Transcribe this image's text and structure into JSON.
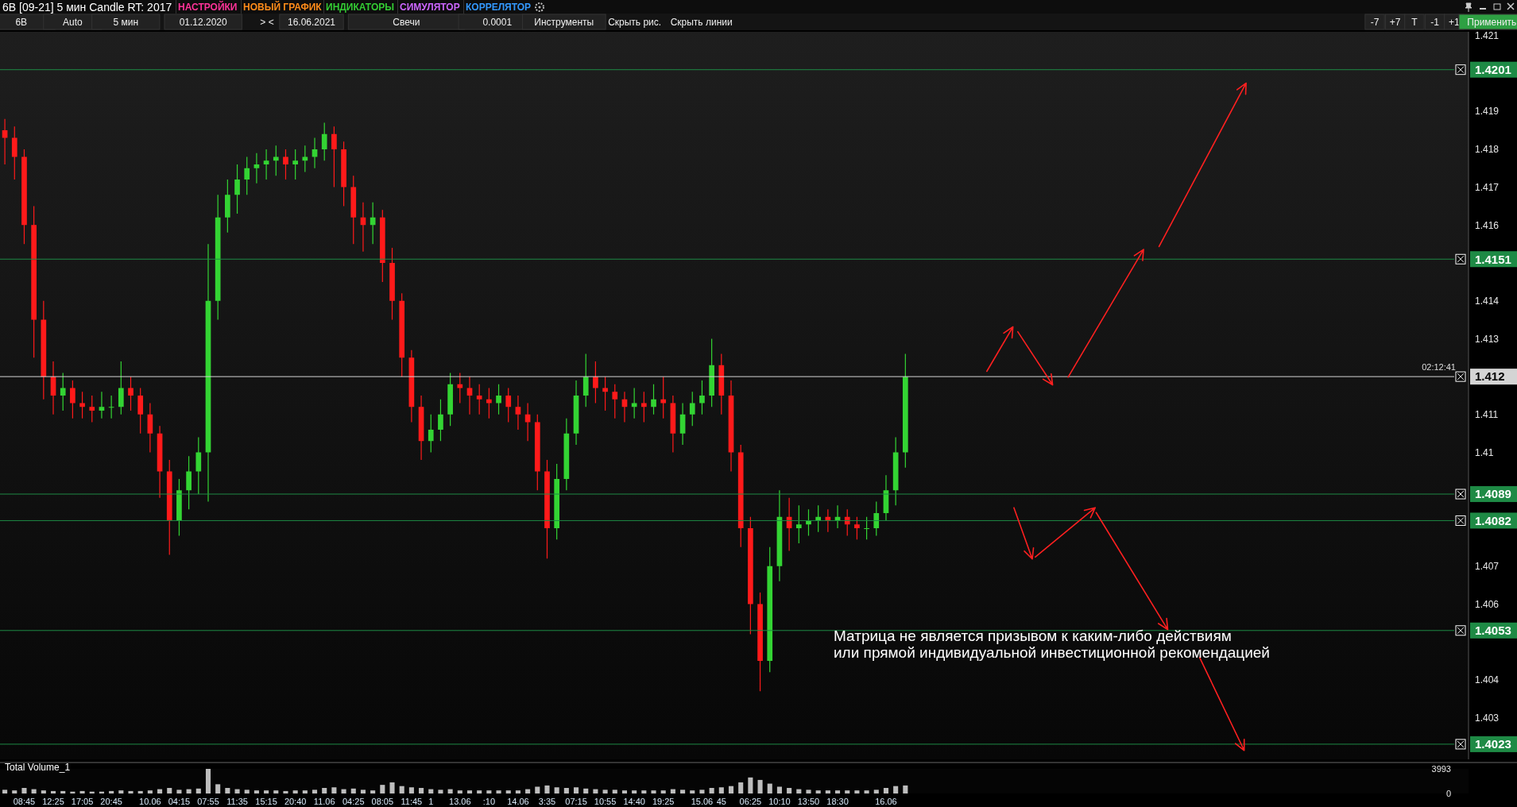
{
  "chart_data": [
    {
      "type": "candlestick",
      "title": "6B [09-21] 5 мин Candle RT: 2017",
      "tick_labels": "y",
      "categories": [
        null,
        null,
        null,
        null,
        null,
        null,
        null,
        null,
        null,
        null,
        null,
        null,
        null,
        null,
        null,
        null,
        null,
        null,
        null,
        null,
        null,
        null,
        null,
        null,
        null,
        null,
        null,
        null,
        null,
        null,
        null,
        null,
        null,
        null,
        null,
        null,
        null,
        null,
        null,
        null,
        null,
        null,
        null,
        null,
        null,
        null,
        null,
        null,
        null,
        null,
        null,
        null,
        null,
        null,
        null,
        null,
        null,
        null,
        null,
        null,
        null,
        null,
        null,
        null,
        null,
        null,
        null,
        null,
        null,
        null,
        null,
        null,
        null,
        null,
        null,
        null,
        null,
        null,
        null,
        null,
        null,
        null,
        null,
        null,
        null,
        null,
        null,
        null,
        null,
        null,
        null,
        null,
        null,
        null,
        null,
        null,
        null,
        null,
        null,
        null,
        null,
        null,
        null,
        null,
        null,
        null,
        null,
        null,
        null,
        null,
        null,
        null,
        null,
        null,
        null,
        null,
        null,
        null,
        null,
        null,
        null,
        null,
        null,
        null,
        null,
        null,
        null,
        null,
        null,
        null,
        null,
        null,
        null,
        null,
        null,
        null,
        null,
        null,
        null,
        null,
        null,
        null,
        null,
        null,
        null,
        null,
        null,
        null,
        null,
        null,
        null
      ],
      "ohlc": [
        [
          1.4185,
          1.4188,
          1.4176,
          1.4183
        ],
        [
          1.4183,
          1.4186,
          1.4172,
          1.4178
        ],
        [
          1.4178,
          1.418,
          1.4155,
          1.416
        ],
        [
          1.416,
          1.4165,
          1.4125,
          1.4135
        ],
        [
          1.4135,
          1.414,
          1.4114,
          1.412
        ],
        [
          1.412,
          1.4124,
          1.411,
          1.4115
        ],
        [
          1.4115,
          1.4121,
          1.4111,
          1.4117
        ],
        [
          1.4117,
          1.4119,
          1.4109,
          1.4113
        ],
        [
          1.4113,
          1.4116,
          1.4109,
          1.4112
        ],
        [
          1.4112,
          1.4115,
          1.4108,
          1.4111
        ],
        [
          1.4111,
          1.4116,
          1.4109,
          1.4112
        ],
        [
          1.4112,
          1.4115,
          1.4109,
          1.4112
        ],
        [
          1.4112,
          1.4124,
          1.411,
          1.4117
        ],
        [
          1.4117,
          1.412,
          1.4111,
          1.4115
        ],
        [
          1.4115,
          1.4117,
          1.4105,
          1.411
        ],
        [
          1.411,
          1.4113,
          1.41,
          1.4105
        ],
        [
          1.4105,
          1.4107,
          1.4088,
          1.4095
        ],
        [
          1.4095,
          1.4098,
          1.4073,
          1.4082
        ],
        [
          1.4082,
          1.4093,
          1.4078,
          1.409
        ],
        [
          1.409,
          1.4099,
          1.4085,
          1.4095
        ],
        [
          1.4095,
          1.4104,
          1.4089,
          1.41
        ],
        [
          1.41,
          1.4155,
          1.4087,
          1.414
        ],
        [
          1.414,
          1.4168,
          1.4135,
          1.4162
        ],
        [
          1.4162,
          1.4172,
          1.4158,
          1.4168
        ],
        [
          1.4168,
          1.4176,
          1.4163,
          1.4172
        ],
        [
          1.4172,
          1.4178,
          1.4168,
          1.4175
        ],
        [
          1.4175,
          1.4179,
          1.4171,
          1.4176
        ],
        [
          1.4176,
          1.418,
          1.4172,
          1.4177
        ],
        [
          1.4177,
          1.4181,
          1.4173,
          1.4178
        ],
        [
          1.4178,
          1.418,
          1.4172,
          1.4176
        ],
        [
          1.4176,
          1.418,
          1.4172,
          1.4177
        ],
        [
          1.4177,
          1.4181,
          1.4174,
          1.4178
        ],
        [
          1.4178,
          1.4183,
          1.4175,
          1.418
        ],
        [
          1.418,
          1.4187,
          1.4177,
          1.4184
        ],
        [
          1.4184,
          1.4186,
          1.417,
          1.418
        ],
        [
          1.418,
          1.4182,
          1.4165,
          1.417
        ],
        [
          1.417,
          1.4173,
          1.4155,
          1.4162
        ],
        [
          1.4162,
          1.4166,
          1.4153,
          1.416
        ],
        [
          1.416,
          1.4166,
          1.4155,
          1.4162
        ],
        [
          1.4162,
          1.4164,
          1.4145,
          1.415
        ],
        [
          1.415,
          1.4154,
          1.4135,
          1.414
        ],
        [
          1.414,
          1.4142,
          1.412,
          1.4125
        ],
        [
          1.4125,
          1.4127,
          1.4108,
          1.4112
        ],
        [
          1.4112,
          1.4115,
          1.4098,
          1.4103
        ],
        [
          1.4103,
          1.411,
          1.41,
          1.4106
        ],
        [
          1.4106,
          1.4114,
          1.4103,
          1.411
        ],
        [
          1.411,
          1.4121,
          1.4107,
          1.4118
        ],
        [
          1.4118,
          1.4121,
          1.4113,
          1.4117
        ],
        [
          1.4117,
          1.412,
          1.411,
          1.4115
        ],
        [
          1.4115,
          1.4118,
          1.411,
          1.4114
        ],
        [
          1.4114,
          1.4117,
          1.4109,
          1.4113
        ],
        [
          1.4113,
          1.4118,
          1.411,
          1.4115
        ],
        [
          1.4115,
          1.4117,
          1.4108,
          1.4112
        ],
        [
          1.4112,
          1.4115,
          1.4106,
          1.411
        ],
        [
          1.411,
          1.4113,
          1.4103,
          1.4108
        ],
        [
          1.4108,
          1.411,
          1.409,
          1.4095
        ],
        [
          1.4095,
          1.4098,
          1.4072,
          1.408
        ],
        [
          1.408,
          1.4097,
          1.4077,
          1.4093
        ],
        [
          1.4093,
          1.4109,
          1.409,
          1.4105
        ],
        [
          1.4105,
          1.4119,
          1.4102,
          1.4115
        ],
        [
          1.4115,
          1.4126,
          1.4112,
          1.412
        ],
        [
          1.412,
          1.4124,
          1.4113,
          1.4117
        ],
        [
          1.4117,
          1.412,
          1.4111,
          1.4116
        ],
        [
          1.4116,
          1.4118,
          1.4109,
          1.4114
        ],
        [
          1.4114,
          1.4116,
          1.4108,
          1.4112
        ],
        [
          1.4112,
          1.4117,
          1.4109,
          1.4113
        ],
        [
          1.4113,
          1.4116,
          1.4108,
          1.4112
        ],
        [
          1.4112,
          1.4118,
          1.411,
          1.4114
        ],
        [
          1.4114,
          1.412,
          1.4109,
          1.4113
        ],
        [
          1.4113,
          1.4115,
          1.41,
          1.4105
        ],
        [
          1.4105,
          1.4113,
          1.4102,
          1.411
        ],
        [
          1.411,
          1.4116,
          1.4107,
          1.4113
        ],
        [
          1.4113,
          1.4119,
          1.411,
          1.4115
        ],
        [
          1.4115,
          1.413,
          1.4112,
          1.4123
        ],
        [
          1.4123,
          1.4126,
          1.411,
          1.4115
        ],
        [
          1.4115,
          1.4119,
          1.4095,
          1.41
        ],
        [
          1.41,
          1.4102,
          1.4075,
          1.408
        ],
        [
          1.408,
          1.4083,
          1.4052,
          1.406
        ],
        [
          1.406,
          1.4063,
          1.4037,
          1.4045
        ],
        [
          1.4045,
          1.4075,
          1.4042,
          1.407
        ],
        [
          1.407,
          1.409,
          1.4066,
          1.4083
        ],
        [
          1.4083,
          1.4088,
          1.4074,
          1.408
        ],
        [
          1.408,
          1.4086,
          1.4076,
          1.4081
        ],
        [
          1.4081,
          1.4085,
          1.4078,
          1.4082
        ],
        [
          1.4082,
          1.4086,
          1.4079,
          1.4083
        ],
        [
          1.4083,
          1.4085,
          1.4079,
          1.4082
        ],
        [
          1.4082,
          1.4086,
          1.408,
          1.4083
        ],
        [
          1.4083,
          1.4085,
          1.4078,
          1.4081
        ],
        [
          1.4081,
          1.4083,
          1.4077,
          1.408
        ],
        [
          1.408,
          1.4083,
          1.4077,
          1.408
        ],
        [
          1.408,
          1.4087,
          1.4078,
          1.4084
        ],
        [
          1.4084,
          1.4094,
          1.4082,
          1.409
        ],
        [
          1.409,
          1.4104,
          1.4086,
          1.41
        ],
        [
          1.41,
          1.4126,
          1.4096,
          1.412
        ],
        null,
        null,
        null,
        null,
        null,
        null,
        null,
        null,
        null,
        null,
        null,
        null,
        null,
        null,
        null,
        null,
        null,
        null,
        null,
        null,
        null,
        null,
        null,
        null,
        null,
        null,
        null,
        null,
        null,
        null,
        null,
        null,
        null,
        null,
        null,
        null,
        null,
        null,
        null,
        null,
        null,
        null,
        null,
        null,
        null,
        null,
        null,
        null,
        null,
        null,
        null,
        null,
        null,
        null,
        null,
        null,
        null
      ],
      "ylim": [
        1.4019,
        1.4211
      ],
      "yticks": [
        1.421,
        1.419,
        1.418,
        1.417,
        1.416,
        1.414,
        1.413,
        1.411,
        1.41,
        1.407,
        1.406,
        1.404,
        1.403
      ],
      "ref_lines": [
        {
          "axis": "y",
          "value": 1.4201,
          "label": "1.4201",
          "color": "#1e8a45"
        },
        {
          "axis": "y",
          "value": 1.4151,
          "label": "1.4151",
          "color": "#1e8a45"
        },
        {
          "axis": "y",
          "value": 1.412,
          "label": "1.412",
          "color": "#d4d4d4"
        },
        {
          "axis": "y",
          "value": 1.4089,
          "label": "1.4089",
          "color": "#1e8a45"
        },
        {
          "axis": "y",
          "value": 1.4082,
          "label": "1.4082",
          "color": "#1e8a45"
        },
        {
          "axis": "y",
          "value": 1.4053,
          "label": "1.4053",
          "color": "#1e8a45"
        },
        {
          "axis": "y",
          "value": 1.4023,
          "label": "1.4023",
          "color": "#1e8a45"
        }
      ],
      "annotations": [
        "Матрица не является призывом к каким-либо действиям\nили прямой индивидуальной инвестиционной рекомендацией",
        "02:12:41",
        "НАСТРОЙКИ",
        "НОВЫЙ ГРАФИК",
        "ИНДИКАТОРЫ",
        "СИМУЛЯТОР",
        "КОРРЕЛЯТОР",
        "6B",
        "Auto",
        "5 мин",
        "01.12.2020",
        "> <",
        "16.06.2021",
        "Свечи",
        "0.0001",
        "Инструменты",
        "Скрыть рис.",
        "Скрыть линии",
        "-7",
        "+7",
        "T",
        "-1",
        "+1",
        "Применить"
      ]
    },
    {
      "type": "bar",
      "title": "Total Volume_1",
      "color": "#bdbdbd",
      "categories": [
        null,
        null,
        "08:45",
        null,
        null,
        "12:25",
        null,
        null,
        "17:05",
        null,
        null,
        "20:45",
        null,
        null,
        null,
        "10.06",
        null,
        null,
        "04:15",
        null,
        null,
        "07:55",
        null,
        null,
        "11:35",
        null,
        null,
        "15:15",
        null,
        null,
        "20:40",
        null,
        null,
        "11.06",
        null,
        null,
        "04:25",
        null,
        null,
        "08:05",
        null,
        null,
        "11:45",
        null,
        "1",
        null,
        null,
        "13.06",
        null,
        null,
        ":10",
        null,
        null,
        "14.06",
        null,
        null,
        "3:35",
        null,
        null,
        "07:15",
        null,
        null,
        "10:55",
        null,
        null,
        "14:40",
        null,
        null,
        "19:25",
        null,
        null,
        null,
        "15.06",
        null,
        "45",
        null,
        null,
        "06:25",
        null,
        null,
        "10:10",
        null,
        null,
        "13:50",
        null,
        null,
        "18:30",
        null,
        null,
        null,
        null,
        "16.06",
        null,
        null,
        null,
        null,
        null,
        null,
        null,
        null,
        null,
        null,
        null,
        null,
        null,
        null,
        null,
        null,
        null,
        null,
        null,
        null,
        null,
        null,
        null,
        null,
        null,
        null,
        null,
        null,
        null,
        null,
        null,
        null,
        null,
        null,
        null,
        null,
        null,
        null,
        null,
        null,
        null,
        null,
        null,
        null,
        null,
        null,
        null,
        null,
        null,
        null,
        null,
        null,
        null,
        null,
        null,
        null,
        null,
        null,
        null
      ],
      "values": [
        600,
        500,
        900,
        700,
        500,
        400,
        400,
        300,
        400,
        300,
        300,
        400,
        500,
        400,
        400,
        500,
        700,
        900,
        600,
        700,
        800,
        3993,
        1500,
        900,
        700,
        600,
        500,
        500,
        500,
        400,
        500,
        500,
        600,
        900,
        1000,
        700,
        800,
        600,
        500,
        1400,
        1800,
        1200,
        1000,
        900,
        700,
        600,
        700,
        500,
        500,
        500,
        500,
        500,
        500,
        500,
        700,
        1100,
        1300,
        1000,
        900,
        1000,
        800,
        700,
        600,
        600,
        500,
        500,
        500,
        500,
        500,
        700,
        600,
        500,
        600,
        900,
        1000,
        1200,
        1800,
        2600,
        2200,
        1600,
        1100,
        900,
        700,
        600,
        500,
        500,
        500,
        500,
        500,
        500,
        600,
        900,
        1200,
        1300,
        null,
        null,
        null,
        null,
        null,
        null,
        null,
        null,
        null,
        null,
        null,
        null,
        null,
        null,
        null,
        null,
        null,
        null,
        null,
        null,
        null,
        null,
        null,
        null,
        null,
        null,
        null,
        null,
        null,
        null,
        null,
        null,
        null,
        null,
        null,
        null,
        null,
        null,
        null,
        null,
        null,
        null,
        null,
        null,
        null,
        null,
        null,
        null,
        null,
        null,
        null,
        null,
        null,
        null,
        null,
        null,
        null
      ],
      "ylim": [
        0,
        3993
      ],
      "yticks": [
        0,
        3993
      ]
    }
  ]
}
